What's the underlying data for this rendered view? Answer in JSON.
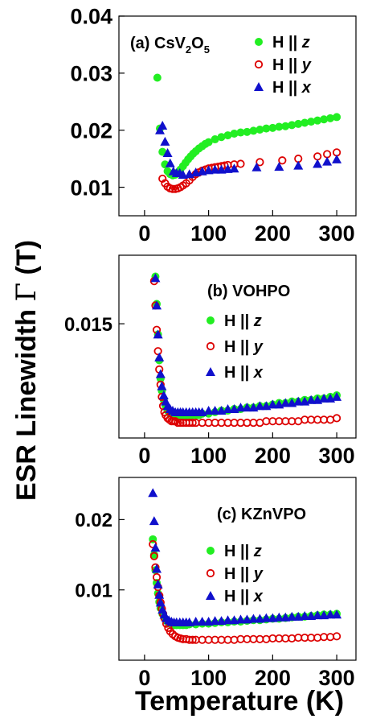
{
  "axes": {
    "xlabel": "Temperature (K)",
    "ylabel_prefix": "ESR Linewidth ",
    "ylabel_symbol": "Γ",
    "ylabel_suffix": " (T)"
  },
  "colors": {
    "z": "#22ee22",
    "y": "#dd0000",
    "x": "#1010cc"
  },
  "legend_labels": [
    {
      "prefix": "H || ",
      "var": "z"
    },
    {
      "prefix": "H || ",
      "var": "y"
    },
    {
      "prefix": "H || ",
      "var": "x"
    }
  ],
  "chart_data": [
    {
      "type": "scatter",
      "title_text": "(a) CsV",
      "title_sub1": "2",
      "title_mid": "O",
      "title_sub2": "5",
      "xlim": [
        -40,
        330
      ],
      "ylim": [
        0.005,
        0.04
      ],
      "xticks": [
        {
          "v": 0,
          "label": "0"
        },
        {
          "v": 100,
          "label": "100"
        },
        {
          "v": 200,
          "label": "200"
        },
        {
          "v": 300,
          "label": "300"
        }
      ],
      "yticks": [
        {
          "v": 0.01,
          "label": "0.01"
        },
        {
          "v": 0.02,
          "label": "0.02"
        },
        {
          "v": 0.03,
          "label": "0.03"
        },
        {
          "v": 0.04,
          "label": "0.04"
        }
      ],
      "series": [
        {
          "name": "H || z",
          "key": "z",
          "marker": "circle-filled",
          "x": [
            20,
            24,
            28,
            32,
            36,
            40,
            44,
            48,
            52,
            56,
            60,
            64,
            68,
            72,
            76,
            80,
            85,
            90,
            95,
            100,
            110,
            120,
            130,
            140,
            150,
            160,
            170,
            180,
            190,
            200,
            210,
            220,
            230,
            240,
            250,
            260,
            270,
            280,
            290,
            300
          ],
          "y": [
            0.0292,
            0.0203,
            0.0162,
            0.014,
            0.0128,
            0.0123,
            0.0121,
            0.0122,
            0.0126,
            0.0131,
            0.0137,
            0.0143,
            0.0149,
            0.0154,
            0.0159,
            0.0163,
            0.0168,
            0.0172,
            0.0176,
            0.0179,
            0.0184,
            0.0188,
            0.0191,
            0.0194,
            0.0196,
            0.0197,
            0.0199,
            0.0201,
            0.0203,
            0.0204,
            0.0206,
            0.0207,
            0.0209,
            0.0211,
            0.0213,
            0.0215,
            0.0217,
            0.0219,
            0.0221,
            0.0223
          ]
        },
        {
          "name": "H || y",
          "key": "y",
          "marker": "circle-open",
          "x": [
            28,
            32,
            36,
            40,
            44,
            48,
            52,
            56,
            60,
            65,
            70,
            75,
            80,
            85,
            90,
            95,
            100,
            105,
            110,
            115,
            120,
            125,
            130,
            140,
            150,
            180,
            215,
            240,
            270,
            285,
            300
          ],
          "y": [
            0.0115,
            0.0107,
            0.0101,
            0.0098,
            0.0097,
            0.0097,
            0.0098,
            0.01,
            0.0103,
            0.0107,
            0.0112,
            0.0118,
            0.0123,
            0.0126,
            0.0129,
            0.0131,
            0.0133,
            0.0134,
            0.0135,
            0.0136,
            0.0137,
            0.0138,
            0.0139,
            0.014,
            0.0141,
            0.0144,
            0.0147,
            0.015,
            0.0154,
            0.0158,
            0.0161
          ]
        },
        {
          "name": "H || x",
          "key": "x",
          "marker": "triangle",
          "x": [
            24,
            28,
            32,
            36,
            40,
            45,
            50,
            55,
            60,
            70,
            80,
            90,
            100,
            110,
            120,
            130,
            140,
            175,
            210,
            240,
            270,
            285,
            300
          ],
          "y": [
            0.02,
            0.0208,
            0.018,
            0.016,
            0.0142,
            0.0128,
            0.0125,
            0.0125,
            0.0122,
            0.0123,
            0.0126,
            0.0128,
            0.013,
            0.0131,
            0.0131,
            0.0132,
            0.0133,
            0.0135,
            0.0136,
            0.0138,
            0.0141,
            0.0145,
            0.0149
          ]
        }
      ]
    },
    {
      "type": "scatter",
      "title_text": "(b) VOHPO",
      "xlim": [
        -40,
        330
      ],
      "ylim": [
        0.0075,
        0.0195
      ],
      "xticks": [
        {
          "v": 0,
          "label": "0"
        },
        {
          "v": 100,
          "label": "100"
        },
        {
          "v": 200,
          "label": "200"
        },
        {
          "v": 300,
          "label": "300"
        }
      ],
      "yticks": [
        {
          "v": 0.015,
          "label": "0.015"
        }
      ],
      "series": [
        {
          "name": "H || z",
          "key": "z",
          "marker": "circle-filled",
          "x": [
            17,
            19,
            21,
            23,
            25,
            27,
            30,
            33,
            36,
            40,
            44,
            48,
            52,
            56,
            60,
            65,
            70,
            75,
            80,
            85,
            90,
            100,
            110,
            120,
            130,
            140,
            150,
            160,
            170,
            180,
            190,
            200,
            210,
            220,
            230,
            240,
            250,
            260,
            270,
            280,
            290,
            300
          ],
          "y": [
            0.0181,
            0.0163,
            0.0143,
            0.0126,
            0.0114,
            0.0106,
            0.01,
            0.0096,
            0.0093,
            0.0091,
            0.009,
            0.0089,
            0.0089,
            0.0089,
            0.0089,
            0.0089,
            0.0089,
            0.009,
            0.009,
            0.009,
            0.0091,
            0.0091,
            0.0092,
            0.0093,
            0.0093,
            0.0094,
            0.0094,
            0.0095,
            0.0095,
            0.0096,
            0.0096,
            0.0097,
            0.0098,
            0.0098,
            0.0099,
            0.0099,
            0.01,
            0.01,
            0.0101,
            0.0101,
            0.0102,
            0.0103
          ]
        },
        {
          "name": "H || y",
          "key": "y",
          "marker": "circle-open",
          "x": [
            15,
            17,
            19,
            21,
            23,
            25,
            27,
            29,
            31,
            33,
            36,
            39,
            42,
            45,
            48,
            52,
            56,
            60,
            65,
            70,
            75,
            80,
            90,
            100,
            110,
            120,
            130,
            140,
            150,
            160,
            170,
            180,
            190,
            200,
            210,
            220,
            230,
            240,
            250,
            260,
            270,
            280,
            290,
            300
          ],
          "y": [
            0.0178,
            0.0162,
            0.0146,
            0.0132,
            0.012,
            0.011,
            0.0102,
            0.0096,
            0.0092,
            0.009,
            0.0088,
            0.0087,
            0.0086,
            0.0086,
            0.0086,
            0.0085,
            0.0085,
            0.0085,
            0.0085,
            0.0085,
            0.0085,
            0.0085,
            0.0085,
            0.0085,
            0.0085,
            0.0085,
            0.0085,
            0.0085,
            0.0085,
            0.0085,
            0.0085,
            0.0085,
            0.0086,
            0.0086,
            0.0086,
            0.0086,
            0.0086,
            0.0086,
            0.0087,
            0.0087,
            0.0087,
            0.0087,
            0.0087,
            0.0088
          ]
        },
        {
          "name": "H || x",
          "key": "x",
          "marker": "triangle",
          "x": [
            17,
            19,
            21,
            23,
            25,
            27,
            30,
            33,
            36,
            40,
            44,
            48,
            52,
            56,
            60,
            65,
            70,
            75,
            80,
            85,
            90,
            100,
            110,
            120,
            130,
            140,
            150,
            160,
            170,
            180,
            190,
            200,
            210,
            220,
            230,
            240,
            250,
            260,
            270,
            280,
            290,
            300
          ],
          "y": [
            0.018,
            0.0162,
            0.0143,
            0.0128,
            0.0117,
            0.0109,
            0.0103,
            0.0099,
            0.0096,
            0.0094,
            0.0093,
            0.0092,
            0.0092,
            0.0092,
            0.0092,
            0.0092,
            0.0092,
            0.0092,
            0.0092,
            0.0092,
            0.0092,
            0.0093,
            0.0093,
            0.0093,
            0.0094,
            0.0094,
            0.0095,
            0.0095,
            0.0095,
            0.0096,
            0.0096,
            0.0097,
            0.0097,
            0.0098,
            0.0098,
            0.0099,
            0.0099,
            0.01,
            0.01,
            0.0101,
            0.0101,
            0.0102
          ]
        }
      ]
    },
    {
      "type": "scatter",
      "title_text": "(c) KZnVPO",
      "xlim": [
        -40,
        330
      ],
      "ylim": [
        0.0,
        0.026
      ],
      "xticks": [
        {
          "v": 0,
          "label": "0"
        },
        {
          "v": 100,
          "label": "100"
        },
        {
          "v": 200,
          "label": "200"
        },
        {
          "v": 300,
          "label": "300"
        }
      ],
      "yticks": [
        {
          "v": 0.01,
          "label": "0.01"
        },
        {
          "v": 0.02,
          "label": "0.02"
        }
      ],
      "series": [
        {
          "name": "H || z",
          "key": "z",
          "marker": "circle-filled",
          "x": [
            13,
            15,
            17,
            19,
            21,
            23,
            25,
            28,
            31,
            34,
            38,
            42,
            46,
            50,
            55,
            60,
            65,
            70,
            80,
            90,
            100,
            110,
            120,
            130,
            140,
            150,
            160,
            170,
            180,
            190,
            200,
            210,
            220,
            230,
            240,
            250,
            260,
            270,
            280,
            290,
            300
          ],
          "y": [
            0.0172,
            0.015,
            0.0128,
            0.011,
            0.0095,
            0.0083,
            0.0074,
            0.0066,
            0.006,
            0.0056,
            0.0053,
            0.0051,
            0.005,
            0.005,
            0.005,
            0.005,
            0.005,
            0.0051,
            0.0051,
            0.0052,
            0.0052,
            0.0053,
            0.0054,
            0.0054,
            0.0055,
            0.0055,
            0.0056,
            0.0057,
            0.0057,
            0.0058,
            0.0059,
            0.0059,
            0.006,
            0.0061,
            0.0062,
            0.0062,
            0.0063,
            0.0064,
            0.0065,
            0.0065,
            0.0066
          ]
        },
        {
          "name": "H || y",
          "key": "y",
          "marker": "circle-open",
          "x": [
            13,
            15,
            17,
            19,
            21,
            23,
            25,
            27,
            29,
            31,
            34,
            37,
            40,
            44,
            48,
            52,
            56,
            60,
            65,
            70,
            75,
            80,
            90,
            100,
            110,
            120,
            130,
            140,
            150,
            160,
            170,
            180,
            190,
            200,
            210,
            220,
            230,
            240,
            250,
            260,
            270,
            280,
            290,
            300
          ],
          "y": [
            0.0165,
            0.0148,
            0.0132,
            0.0118,
            0.0104,
            0.0092,
            0.0082,
            0.0073,
            0.0066,
            0.006,
            0.0052,
            0.0046,
            0.0041,
            0.0037,
            0.0034,
            0.0032,
            0.0031,
            0.003,
            0.003,
            0.0029,
            0.0029,
            0.0029,
            0.0029,
            0.0029,
            0.0029,
            0.0029,
            0.0029,
            0.0029,
            0.003,
            0.003,
            0.003,
            0.003,
            0.003,
            0.0031,
            0.0031,
            0.0031,
            0.0031,
            0.0032,
            0.0032,
            0.0032,
            0.0032,
            0.0033,
            0.0033,
            0.0034
          ]
        },
        {
          "name": "H || x",
          "key": "x",
          "marker": "triangle",
          "x": [
            13,
            15,
            17,
            19,
            21,
            23,
            25,
            28,
            31,
            34,
            38,
            42,
            46,
            50,
            55,
            60,
            65,
            70,
            80,
            90,
            100,
            110,
            120,
            130,
            140,
            150,
            160,
            170,
            180,
            190,
            200,
            210,
            220,
            230,
            240,
            250,
            260,
            270,
            280,
            290,
            300
          ],
          "y": [
            0.0238,
            0.0198,
            0.016,
            0.013,
            0.0108,
            0.0093,
            0.0082,
            0.0072,
            0.0065,
            0.006,
            0.0057,
            0.0055,
            0.0054,
            0.0054,
            0.0054,
            0.0054,
            0.0054,
            0.0054,
            0.0055,
            0.0055,
            0.0055,
            0.0056,
            0.0056,
            0.0057,
            0.0057,
            0.0058,
            0.0058,
            0.0059,
            0.0059,
            0.006,
            0.006,
            0.0061,
            0.0061,
            0.0062,
            0.0062,
            0.0063,
            0.0063,
            0.0064,
            0.0064,
            0.0065,
            0.0065
          ]
        }
      ]
    }
  ]
}
